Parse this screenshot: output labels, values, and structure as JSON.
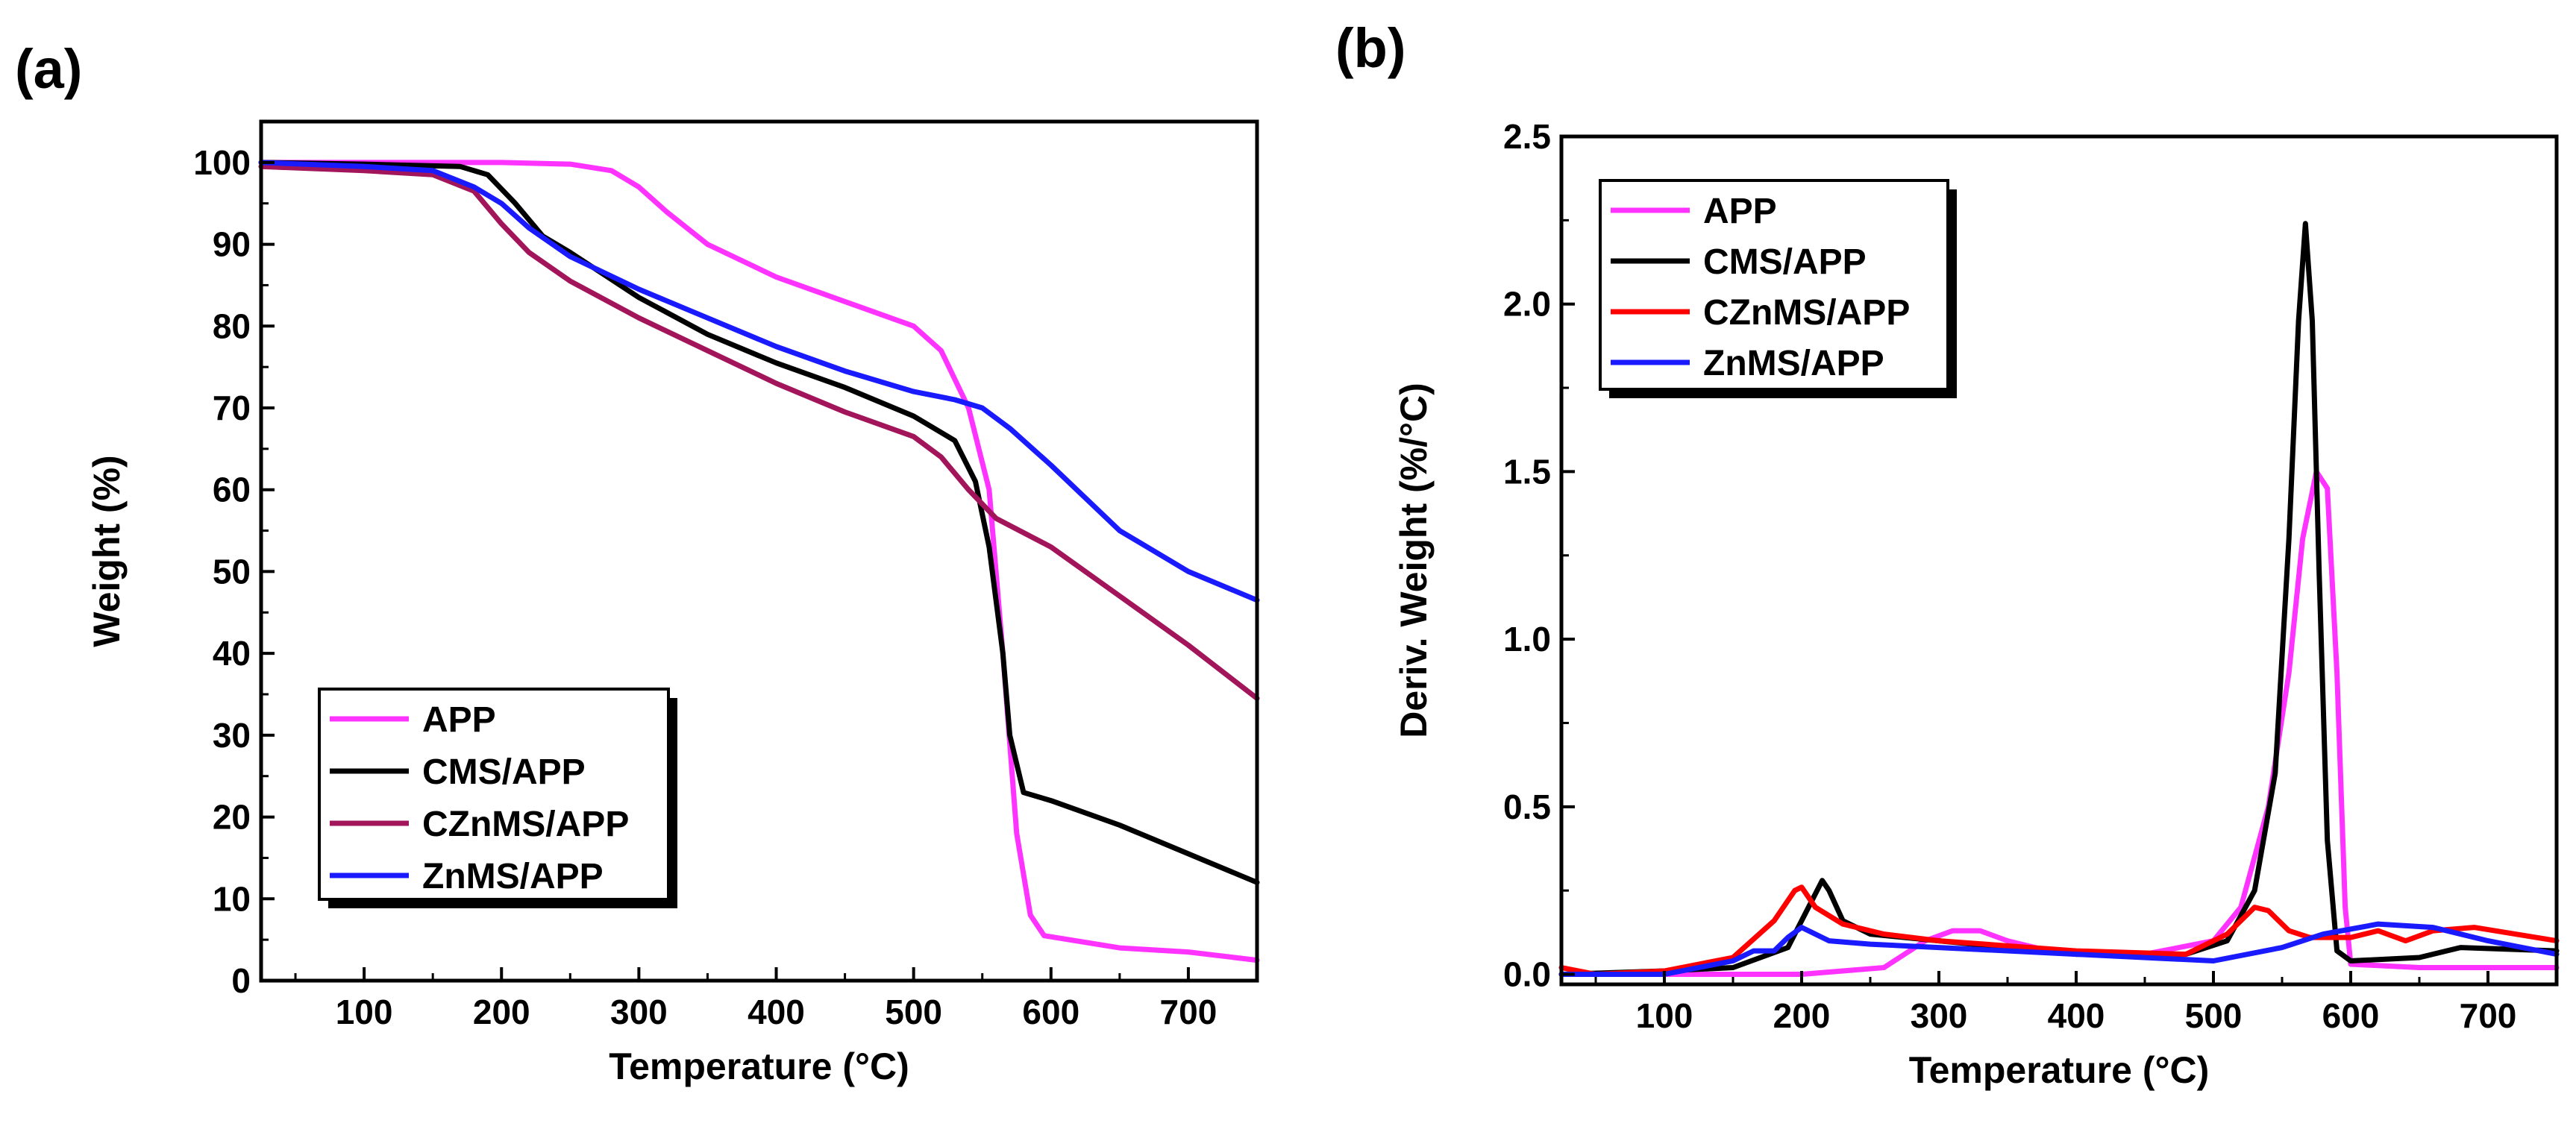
{
  "chart_data": [
    {
      "type": "line",
      "panel_label": "(a)",
      "xlabel": "Temperature (°C)",
      "ylabel": "Weight (%)",
      "xlim": [
        25,
        750
      ],
      "ylim": [
        0,
        105
      ],
      "xticks": [
        100,
        200,
        300,
        400,
        500,
        600,
        700
      ],
      "yticks": [
        0,
        10,
        20,
        30,
        40,
        50,
        60,
        70,
        80,
        90,
        100
      ],
      "legend_position": "bottom-left",
      "series": [
        {
          "name": "APP",
          "color": "#ff33ff",
          "x": [
            25,
            100,
            200,
            250,
            280,
            300,
            320,
            350,
            400,
            450,
            500,
            520,
            540,
            555,
            565,
            575,
            585,
            595,
            650,
            700,
            750
          ],
          "y": [
            100,
            100,
            100,
            99.8,
            99,
            97,
            94,
            90,
            86,
            83,
            80,
            77,
            70,
            60,
            40,
            18,
            8,
            5.5,
            4,
            3.5,
            2.5
          ]
        },
        {
          "name": "CMS/APP",
          "color": "#000000",
          "x": [
            25,
            100,
            170,
            190,
            210,
            230,
            250,
            300,
            350,
            400,
            450,
            500,
            530,
            545,
            555,
            565,
            570,
            580,
            600,
            650,
            700,
            750
          ],
          "y": [
            100,
            99.8,
            99.5,
            98.5,
            95,
            91,
            89,
            83.5,
            79,
            75.5,
            72.5,
            69,
            66,
            61,
            53,
            40,
            30,
            23,
            22,
            19,
            15.5,
            12
          ]
        },
        {
          "name": "CZnMS/APP",
          "color": "#a3155a",
          "x": [
            25,
            100,
            150,
            180,
            200,
            220,
            250,
            300,
            350,
            400,
            450,
            500,
            520,
            540,
            560,
            600,
            650,
            700,
            750
          ],
          "y": [
            99.5,
            99,
            98.5,
            96.5,
            92.5,
            89,
            85.5,
            81,
            77,
            73,
            69.5,
            66.5,
            64,
            60,
            56.5,
            53,
            47,
            41,
            34.5
          ]
        },
        {
          "name": "ZnMS/APP",
          "color": "#1a1aff",
          "x": [
            25,
            100,
            150,
            180,
            200,
            220,
            250,
            300,
            350,
            400,
            450,
            500,
            530,
            550,
            570,
            600,
            650,
            700,
            750
          ],
          "y": [
            100,
            99.5,
            99,
            97,
            95,
            92,
            88.5,
            84.5,
            81,
            77.5,
            74.5,
            72,
            71,
            70,
            67.5,
            63,
            55,
            50,
            46.5
          ]
        }
      ]
    },
    {
      "type": "line",
      "panel_label": "(b)",
      "xlabel": "Temperature (°C)",
      "ylabel": "Deriv. Weight (%/°C)",
      "xlim": [
        25,
        750
      ],
      "ylim": [
        -0.03,
        2.5
      ],
      "xticks": [
        100,
        200,
        300,
        400,
        500,
        600,
        700
      ],
      "yticks": [
        0.0,
        0.5,
        1.0,
        1.5,
        2.0,
        2.5
      ],
      "ytick_labels": [
        "0.0",
        "0.5",
        "1.0",
        "1.5",
        "2.0",
        "2.5"
      ],
      "legend_position": "top-left",
      "series": [
        {
          "name": "APP",
          "color": "#ff33ff",
          "x": [
            25,
            200,
            260,
            290,
            310,
            330,
            350,
            380,
            450,
            500,
            520,
            540,
            555,
            565,
            575,
            583,
            590,
            596,
            600,
            650,
            750
          ],
          "y": [
            0.0,
            0.0,
            0.02,
            0.1,
            0.13,
            0.13,
            0.1,
            0.07,
            0.06,
            0.1,
            0.2,
            0.5,
            0.9,
            1.3,
            1.5,
            1.45,
            0.9,
            0.2,
            0.03,
            0.02,
            0.02
          ]
        },
        {
          "name": "CMS/APP",
          "color": "#000000",
          "x": [
            25,
            100,
            150,
            190,
            205,
            215,
            220,
            230,
            250,
            300,
            400,
            480,
            510,
            530,
            545,
            555,
            562,
            567,
            572,
            577,
            583,
            590,
            600,
            650,
            680,
            750
          ],
          "y": [
            0.0,
            0.01,
            0.02,
            0.08,
            0.2,
            0.28,
            0.25,
            0.16,
            0.12,
            0.1,
            0.06,
            0.06,
            0.1,
            0.25,
            0.6,
            1.3,
            1.95,
            2.24,
            1.95,
            1.2,
            0.4,
            0.07,
            0.04,
            0.05,
            0.08,
            0.07
          ]
        },
        {
          "name": "CZnMS/APP",
          "color": "#ff0000",
          "x": [
            25,
            50,
            100,
            150,
            180,
            195,
            200,
            210,
            230,
            260,
            300,
            400,
            480,
            510,
            530,
            540,
            555,
            570,
            600,
            620,
            640,
            660,
            690,
            750
          ],
          "y": [
            0.02,
            0.0,
            0.01,
            0.05,
            0.16,
            0.25,
            0.26,
            0.2,
            0.15,
            0.12,
            0.1,
            0.07,
            0.06,
            0.12,
            0.2,
            0.19,
            0.13,
            0.11,
            0.11,
            0.13,
            0.1,
            0.13,
            0.14,
            0.1
          ]
        },
        {
          "name": "ZnMS/APP",
          "color": "#1a1aff",
          "x": [
            25,
            100,
            150,
            165,
            180,
            190,
            200,
            220,
            250,
            300,
            400,
            500,
            550,
            580,
            620,
            660,
            700,
            750
          ],
          "y": [
            0.0,
            0.0,
            0.04,
            0.07,
            0.07,
            0.11,
            0.14,
            0.1,
            0.09,
            0.08,
            0.06,
            0.04,
            0.08,
            0.12,
            0.15,
            0.14,
            0.1,
            0.06
          ]
        }
      ]
    }
  ]
}
